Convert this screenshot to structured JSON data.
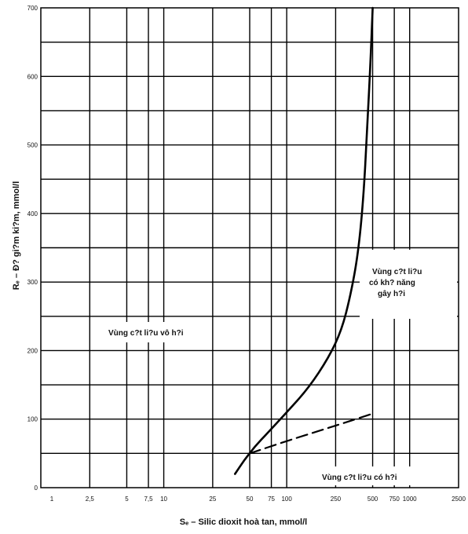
{
  "chart_data": {
    "type": "line",
    "title": "",
    "xlabel": "Sₑ – Silic dioxit hoà tan, mmol/l",
    "ylabel": "Rₑ – Đ? gi?m ki?m, mmol/l",
    "x_scale": "log",
    "xlim": [
      1,
      2500
    ],
    "ylim": [
      0,
      700
    ],
    "x_ticks": [
      {
        "value": 1,
        "label": "1"
      },
      {
        "value": 2.5,
        "label": "2,5"
      },
      {
        "value": 5,
        "label": "5"
      },
      {
        "value": 7.5,
        "label": "7,5"
      },
      {
        "value": 10,
        "label": "10"
      },
      {
        "value": 25,
        "label": "25"
      },
      {
        "value": 50,
        "label": "50"
      },
      {
        "value": 75,
        "label": "75"
      },
      {
        "value": 100,
        "label": "100"
      },
      {
        "value": 250,
        "label": "250"
      },
      {
        "value": 500,
        "label": "500"
      },
      {
        "value": 750,
        "label": "750"
      },
      {
        "value": 1000,
        "label": "1000"
      },
      {
        "value": 2500,
        "label": "2500"
      }
    ],
    "y_ticks": [
      {
        "value": 0,
        "label": "0"
      },
      {
        "value": 100,
        "label": "100"
      },
      {
        "value": 200,
        "label": "200"
      },
      {
        "value": 300,
        "label": "300"
      },
      {
        "value": 400,
        "label": "400"
      },
      {
        "value": 500,
        "label": "500"
      },
      {
        "value": 600,
        "label": "600"
      },
      {
        "value": 700,
        "label": "700"
      }
    ],
    "grid": true,
    "grid_minor_y": [
      50,
      150,
      250,
      350,
      450,
      550,
      650
    ],
    "series": [
      {
        "style": "solid",
        "points": [
          [
            38,
            20
          ],
          [
            45,
            40
          ],
          [
            55,
            60
          ],
          [
            70,
            80
          ],
          [
            100,
            110
          ],
          [
            150,
            145
          ],
          [
            220,
            190
          ],
          [
            280,
            230
          ],
          [
            330,
            280
          ],
          [
            380,
            340
          ],
          [
            420,
            420
          ],
          [
            450,
            520
          ],
          [
            480,
            620
          ],
          [
            500,
            700
          ]
        ]
      },
      {
        "style": "dashed",
        "points": [
          [
            50,
            50
          ],
          [
            100,
            68
          ],
          [
            200,
            85
          ],
          [
            300,
            95
          ],
          [
            500,
            108
          ]
        ]
      }
    ],
    "regions": [
      {
        "id": "harmless",
        "lines": [
          "Vùng c?t li?u vô h?i"
        ]
      },
      {
        "id": "potentially-harmful",
        "lines": [
          "Vùng c?t li?u",
          "có kh? năng",
          "gây h?i"
        ]
      },
      {
        "id": "harmful",
        "lines": [
          "Vùng c?t li?u có h?i"
        ]
      }
    ]
  }
}
